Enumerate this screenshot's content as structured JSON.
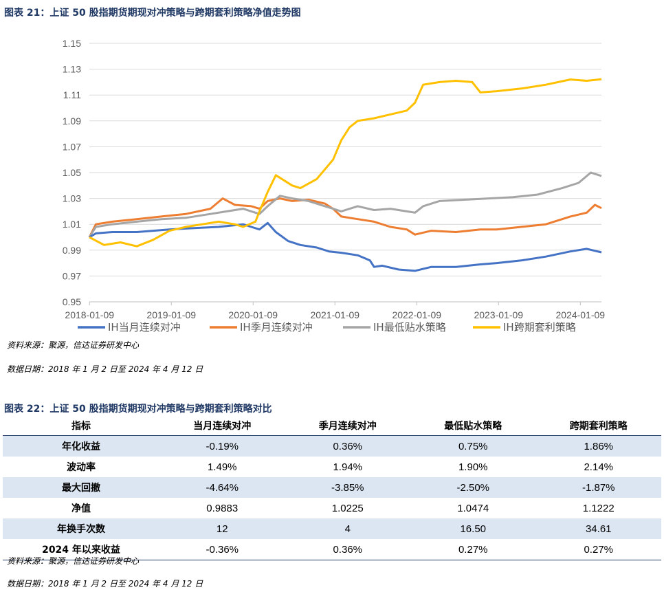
{
  "figure1": {
    "title": "图表 21：上证 50 股指期货期现对冲策略与跨期套利策略净值走势图",
    "source": "资料来源：聚源，信达证券研发中心",
    "date_note": "数据日期：2018 年 1 月 2 日至 2024 年 4 月 12 日"
  },
  "chart_data": {
    "type": "line",
    "title": "",
    "xlabel": "",
    "ylabel": "",
    "x_ticks": [
      "2018-01-09",
      "2019-01-09",
      "2020-01-09",
      "2021-01-09",
      "2022-01-09",
      "2023-01-09",
      "2024-01-09"
    ],
    "y_ticks": [
      "0.95",
      "0.97",
      "0.99",
      "1.01",
      "1.03",
      "1.05",
      "1.07",
      "1.09",
      "1.11",
      "1.13",
      "1.15"
    ],
    "ylim": [
      0.95,
      1.15
    ],
    "xlim": [
      2018.02,
      2024.28
    ],
    "grid": "horizontal",
    "legend_position": "bottom",
    "series": [
      {
        "name": "IH当月连续对冲",
        "color": "#4472c4",
        "points": [
          [
            2018.02,
            1.0
          ],
          [
            2018.1,
            1.003
          ],
          [
            2018.3,
            1.004
          ],
          [
            2018.6,
            1.004
          ],
          [
            2019.0,
            1.006
          ],
          [
            2019.3,
            1.007
          ],
          [
            2019.6,
            1.008
          ],
          [
            2019.9,
            1.01
          ],
          [
            2020.0,
            1.008
          ],
          [
            2020.1,
            1.006
          ],
          [
            2020.2,
            1.011
          ],
          [
            2020.3,
            1.004
          ],
          [
            2020.45,
            0.997
          ],
          [
            2020.6,
            0.994
          ],
          [
            2020.8,
            0.992
          ],
          [
            2020.95,
            0.989
          ],
          [
            2021.1,
            0.988
          ],
          [
            2021.3,
            0.986
          ],
          [
            2021.45,
            0.982
          ],
          [
            2021.5,
            0.977
          ],
          [
            2021.6,
            0.978
          ],
          [
            2021.8,
            0.975
          ],
          [
            2022.0,
            0.974
          ],
          [
            2022.2,
            0.977
          ],
          [
            2022.5,
            0.977
          ],
          [
            2022.8,
            0.979
          ],
          [
            2023.0,
            0.98
          ],
          [
            2023.3,
            0.982
          ],
          [
            2023.6,
            0.985
          ],
          [
            2023.9,
            0.989
          ],
          [
            2024.1,
            0.991
          ],
          [
            2024.28,
            0.9883
          ]
        ]
      },
      {
        "name": "IH季月连续对冲",
        "color": "#ed7d31",
        "points": [
          [
            2018.02,
            1.0
          ],
          [
            2018.1,
            1.01
          ],
          [
            2018.3,
            1.012
          ],
          [
            2018.6,
            1.014
          ],
          [
            2018.9,
            1.016
          ],
          [
            2019.2,
            1.018
          ],
          [
            2019.5,
            1.022
          ],
          [
            2019.65,
            1.03
          ],
          [
            2019.8,
            1.025
          ],
          [
            2020.0,
            1.024
          ],
          [
            2020.1,
            1.022
          ],
          [
            2020.2,
            1.028
          ],
          [
            2020.35,
            1.03
          ],
          [
            2020.5,
            1.028
          ],
          [
            2020.7,
            1.029
          ],
          [
            2020.9,
            1.026
          ],
          [
            2021.0,
            1.022
          ],
          [
            2021.1,
            1.016
          ],
          [
            2021.3,
            1.014
          ],
          [
            2021.5,
            1.012
          ],
          [
            2021.7,
            1.008
          ],
          [
            2021.9,
            1.006
          ],
          [
            2022.0,
            1.002
          ],
          [
            2022.2,
            1.005
          ],
          [
            2022.5,
            1.004
          ],
          [
            2022.8,
            1.006
          ],
          [
            2023.0,
            1.006
          ],
          [
            2023.3,
            1.008
          ],
          [
            2023.6,
            1.01
          ],
          [
            2023.9,
            1.016
          ],
          [
            2024.1,
            1.019
          ],
          [
            2024.2,
            1.025
          ],
          [
            2024.28,
            1.0225
          ]
        ]
      },
      {
        "name": "IH最低贴水策略",
        "color": "#a5a5a5",
        "points": [
          [
            2018.02,
            1.0
          ],
          [
            2018.1,
            1.008
          ],
          [
            2018.3,
            1.01
          ],
          [
            2018.6,
            1.012
          ],
          [
            2018.9,
            1.014
          ],
          [
            2019.2,
            1.015
          ],
          [
            2019.5,
            1.018
          ],
          [
            2019.7,
            1.02
          ],
          [
            2019.9,
            1.022
          ],
          [
            2020.0,
            1.02
          ],
          [
            2020.1,
            1.018
          ],
          [
            2020.2,
            1.024
          ],
          [
            2020.35,
            1.032
          ],
          [
            2020.5,
            1.03
          ],
          [
            2020.7,
            1.028
          ],
          [
            2020.9,
            1.024
          ],
          [
            2021.0,
            1.022
          ],
          [
            2021.1,
            1.02
          ],
          [
            2021.3,
            1.024
          ],
          [
            2021.5,
            1.021
          ],
          [
            2021.7,
            1.022
          ],
          [
            2021.9,
            1.02
          ],
          [
            2022.0,
            1.019
          ],
          [
            2022.1,
            1.024
          ],
          [
            2022.3,
            1.028
          ],
          [
            2022.6,
            1.029
          ],
          [
            2022.9,
            1.03
          ],
          [
            2023.2,
            1.031
          ],
          [
            2023.5,
            1.033
          ],
          [
            2023.8,
            1.038
          ],
          [
            2024.0,
            1.042
          ],
          [
            2024.15,
            1.05
          ],
          [
            2024.28,
            1.0474
          ]
        ]
      },
      {
        "name": "IH跨期套利策略",
        "color": "#ffc000",
        "points": [
          [
            2018.02,
            1.0
          ],
          [
            2018.2,
            0.994
          ],
          [
            2018.4,
            0.996
          ],
          [
            2018.6,
            0.993
          ],
          [
            2018.8,
            0.998
          ],
          [
            2019.0,
            1.005
          ],
          [
            2019.2,
            1.008
          ],
          [
            2019.4,
            1.01
          ],
          [
            2019.6,
            1.012
          ],
          [
            2019.8,
            1.01
          ],
          [
            2019.9,
            1.008
          ],
          [
            2020.05,
            1.012
          ],
          [
            2020.1,
            1.02
          ],
          [
            2020.2,
            1.035
          ],
          [
            2020.3,
            1.048
          ],
          [
            2020.4,
            1.044
          ],
          [
            2020.5,
            1.04
          ],
          [
            2020.6,
            1.038
          ],
          [
            2020.8,
            1.045
          ],
          [
            2021.0,
            1.06
          ],
          [
            2021.1,
            1.075
          ],
          [
            2021.2,
            1.085
          ],
          [
            2021.3,
            1.09
          ],
          [
            2021.5,
            1.092
          ],
          [
            2021.7,
            1.095
          ],
          [
            2021.9,
            1.098
          ],
          [
            2022.0,
            1.104
          ],
          [
            2022.1,
            1.118
          ],
          [
            2022.3,
            1.12
          ],
          [
            2022.5,
            1.121
          ],
          [
            2022.7,
            1.12
          ],
          [
            2022.8,
            1.112
          ],
          [
            2023.0,
            1.113
          ],
          [
            2023.3,
            1.115
          ],
          [
            2023.6,
            1.118
          ],
          [
            2023.9,
            1.122
          ],
          [
            2024.1,
            1.121
          ],
          [
            2024.28,
            1.1222
          ]
        ]
      }
    ]
  },
  "figure2": {
    "title": "图表 22：上证 50 股指期货期现对冲策略与跨期套利策略对比",
    "headers": [
      "指标",
      "当月连续对冲",
      "季月连续对冲",
      "最低贴水策略",
      "跨期套利策略"
    ],
    "rows": [
      [
        "年化收益",
        "-0.19%",
        "0.36%",
        "0.75%",
        "1.86%"
      ],
      [
        "波动率",
        "1.49%",
        "1.94%",
        "1.90%",
        "2.14%"
      ],
      [
        "最大回撤",
        "-4.64%",
        "-3.85%",
        "-2.50%",
        "-1.87%"
      ],
      [
        "净值",
        "0.9883",
        "1.0225",
        "1.0474",
        "1.1222"
      ],
      [
        "年换手次数",
        "12",
        "4",
        "16.50",
        "34.61"
      ],
      [
        "2024 年以来收益",
        "-0.36%",
        "0.36%",
        "0.27%",
        "0.27%"
      ]
    ],
    "source": "资料来源：聚源，信达证券研发中心",
    "date_note": "数据日期：2018 年 1 月 2 日至 2024 年 4 月 12 日"
  }
}
